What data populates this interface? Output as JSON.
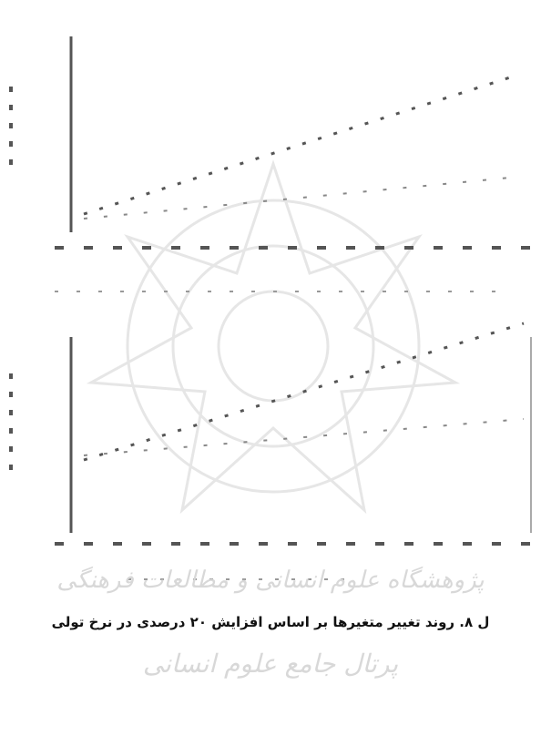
{
  "caption": "ل ۸. روند تغییر متغیرها بر اساس افزایش ۲۰ درصدی در نرخ تولی",
  "watermark": {
    "line1": "پژوهشگاه علوم انسانی و مطالعات فرهنگی",
    "line2": "پرتال جامع علوم انسانی"
  }
}
